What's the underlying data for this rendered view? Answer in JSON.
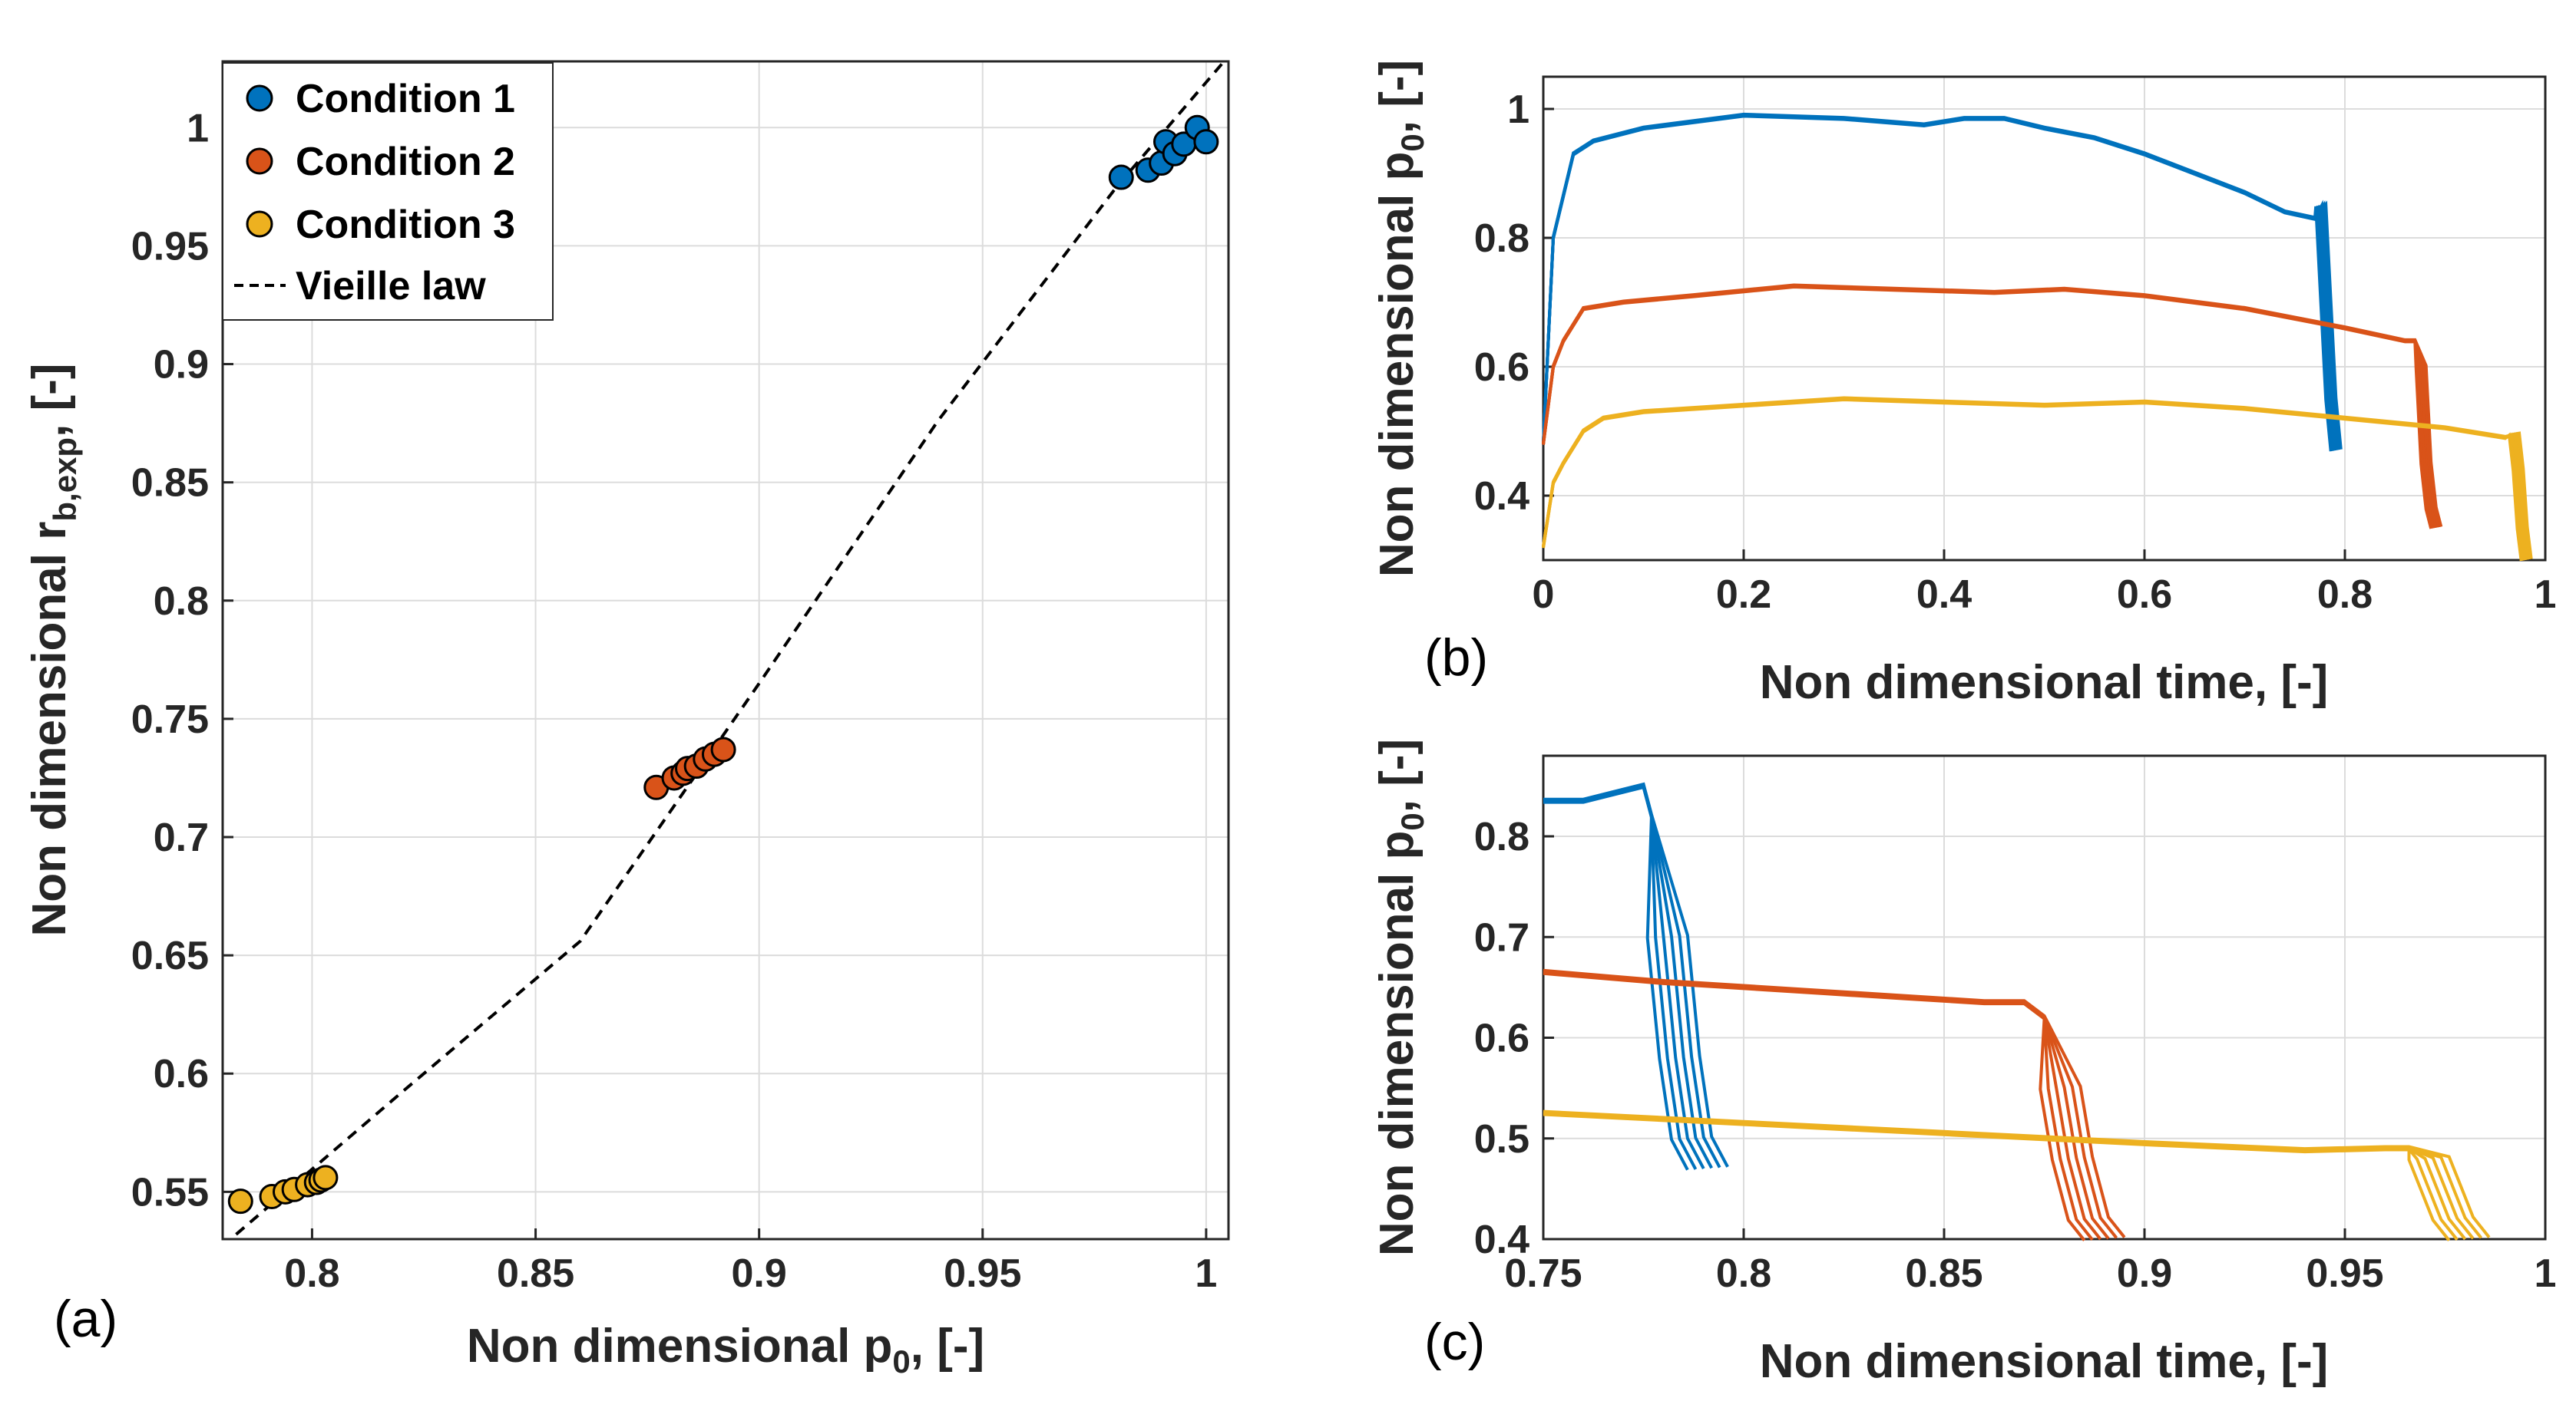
{
  "chart_data": [
    {
      "type": "scatter",
      "panel_label": "(a)",
      "xlabel": "Non dimensional p",
      "xlabel_sub": "0",
      "xlabel_suffix": ", [-]",
      "ylabel": "Non dimensional r",
      "ylabel_sub": "b,exp",
      "ylabel_suffix": ", [-]",
      "xlim": [
        0.78,
        1.005
      ],
      "ylim": [
        0.53,
        1.028
      ],
      "xticks": [
        "0.8",
        "0.85",
        "0.9",
        "0.95",
        "1"
      ],
      "yticks": [
        "0.55",
        "0.6",
        "0.65",
        "0.7",
        "0.75",
        "0.8",
        "0.85",
        "0.9",
        "0.95",
        "1"
      ],
      "grid": true,
      "legend_position": "top-left",
      "series": [
        {
          "name": "Condition 1",
          "color": "#0072BD",
          "x": [
            0.981,
            0.987,
            0.99,
            0.991,
            0.993,
            0.995,
            0.998,
            1.0
          ],
          "y": [
            0.979,
            0.982,
            0.985,
            0.994,
            0.989,
            0.993,
            1.0,
            0.994
          ]
        },
        {
          "name": "Condition 2",
          "color": "#D95319",
          "x": [
            0.877,
            0.881,
            0.883,
            0.884,
            0.886,
            0.888,
            0.89,
            0.892
          ],
          "y": [
            0.721,
            0.725,
            0.727,
            0.729,
            0.73,
            0.733,
            0.735,
            0.737
          ]
        },
        {
          "name": "Condition 3",
          "color": "#EDB120",
          "x": [
            0.784,
            0.791,
            0.794,
            0.796,
            0.799,
            0.801,
            0.802,
            0.803
          ],
          "y": [
            0.546,
            0.548,
            0.55,
            0.551,
            0.553,
            0.554,
            0.555,
            0.556
          ]
        }
      ],
      "fit_line": {
        "name": "Vieille law",
        "style": "dashed",
        "color": "#000000",
        "x": [
          0.783,
          0.82,
          0.86,
          0.9,
          0.94,
          0.98,
          1.004
        ],
        "y": [
          0.532,
          0.592,
          0.656,
          0.765,
          0.876,
          0.975,
          1.028
        ]
      }
    },
    {
      "type": "line",
      "panel_label": "(b)",
      "xlabel": "Non dimensional time, [-]",
      "ylabel": "Non dimensional p",
      "ylabel_sub": "0",
      "ylabel_suffix": ", [-]",
      "xlim": [
        0,
        1.0
      ],
      "ylim": [
        0.3,
        1.05
      ],
      "xticks": [
        "0",
        "0.2",
        "0.4",
        "0.6",
        "0.8",
        "1"
      ],
      "yticks": [
        "0.4",
        "0.6",
        "0.8",
        "1"
      ],
      "grid": true,
      "series": [
        {
          "color": "#0072BD",
          "x": [
            0,
            0.01,
            0.03,
            0.05,
            0.1,
            0.2,
            0.3,
            0.38,
            0.42,
            0.46,
            0.5,
            0.55,
            0.6,
            0.65,
            0.7,
            0.74,
            0.77,
            0.775,
            0.78,
            0.785,
            0.79
          ],
          "y": [
            0.48,
            0.8,
            0.93,
            0.95,
            0.97,
            0.99,
            0.985,
            0.975,
            0.985,
            0.985,
            0.97,
            0.955,
            0.93,
            0.9,
            0.87,
            0.84,
            0.83,
            0.85,
            0.7,
            0.55,
            0.47
          ]
        },
        {
          "color": "#D95319",
          "x": [
            0,
            0.01,
            0.02,
            0.04,
            0.08,
            0.15,
            0.25,
            0.35,
            0.45,
            0.52,
            0.6,
            0.7,
            0.8,
            0.86,
            0.87,
            0.875,
            0.88,
            0.885,
            0.89
          ],
          "y": [
            0.48,
            0.6,
            0.64,
            0.69,
            0.7,
            0.71,
            0.725,
            0.72,
            0.715,
            0.72,
            0.71,
            0.69,
            0.66,
            0.64,
            0.64,
            0.6,
            0.45,
            0.38,
            0.35
          ]
        },
        {
          "color": "#EDB120",
          "x": [
            0,
            0.01,
            0.02,
            0.04,
            0.06,
            0.1,
            0.2,
            0.3,
            0.4,
            0.5,
            0.6,
            0.7,
            0.8,
            0.9,
            0.96,
            0.968,
            0.972,
            0.976,
            0.98
          ],
          "y": [
            0.32,
            0.42,
            0.45,
            0.5,
            0.52,
            0.53,
            0.54,
            0.55,
            0.545,
            0.54,
            0.545,
            0.535,
            0.52,
            0.505,
            0.49,
            0.495,
            0.44,
            0.35,
            0.3
          ]
        }
      ]
    },
    {
      "type": "line",
      "panel_label": "(c)",
      "xlabel": "Non dimensional time, [-]",
      "ylabel": "Non dimensional p",
      "ylabel_sub": "0",
      "ylabel_suffix": ", [-]",
      "xlim": [
        0.75,
        1.0
      ],
      "ylim": [
        0.4,
        0.88
      ],
      "xticks": [
        "0.75",
        "0.8",
        "0.85",
        "0.9",
        "0.95",
        "1"
      ],
      "yticks": [
        "0.4",
        "0.5",
        "0.6",
        "0.7",
        "0.8"
      ],
      "grid": true,
      "series": [
        {
          "color": "#0072BD",
          "x": [
            0.75,
            0.76,
            0.77,
            0.775,
            0.777,
            0.78,
            0.783,
            0.786,
            0.79
          ],
          "y": [
            0.835,
            0.835,
            0.845,
            0.85,
            0.82,
            0.7,
            0.58,
            0.5,
            0.47
          ]
        },
        {
          "color": "#D95319",
          "x": [
            0.75,
            0.78,
            0.8,
            0.82,
            0.84,
            0.86,
            0.87,
            0.875,
            0.878,
            0.881,
            0.885,
            0.889
          ],
          "y": [
            0.665,
            0.655,
            0.65,
            0.645,
            0.64,
            0.635,
            0.635,
            0.62,
            0.55,
            0.48,
            0.42,
            0.4
          ]
        },
        {
          "color": "#EDB120",
          "x": [
            0.75,
            0.8,
            0.85,
            0.9,
            0.94,
            0.96,
            0.966,
            0.97,
            0.973,
            0.976,
            0.98
          ],
          "y": [
            0.525,
            0.515,
            0.505,
            0.495,
            0.488,
            0.49,
            0.49,
            0.48,
            0.45,
            0.42,
            0.4
          ]
        }
      ]
    }
  ]
}
